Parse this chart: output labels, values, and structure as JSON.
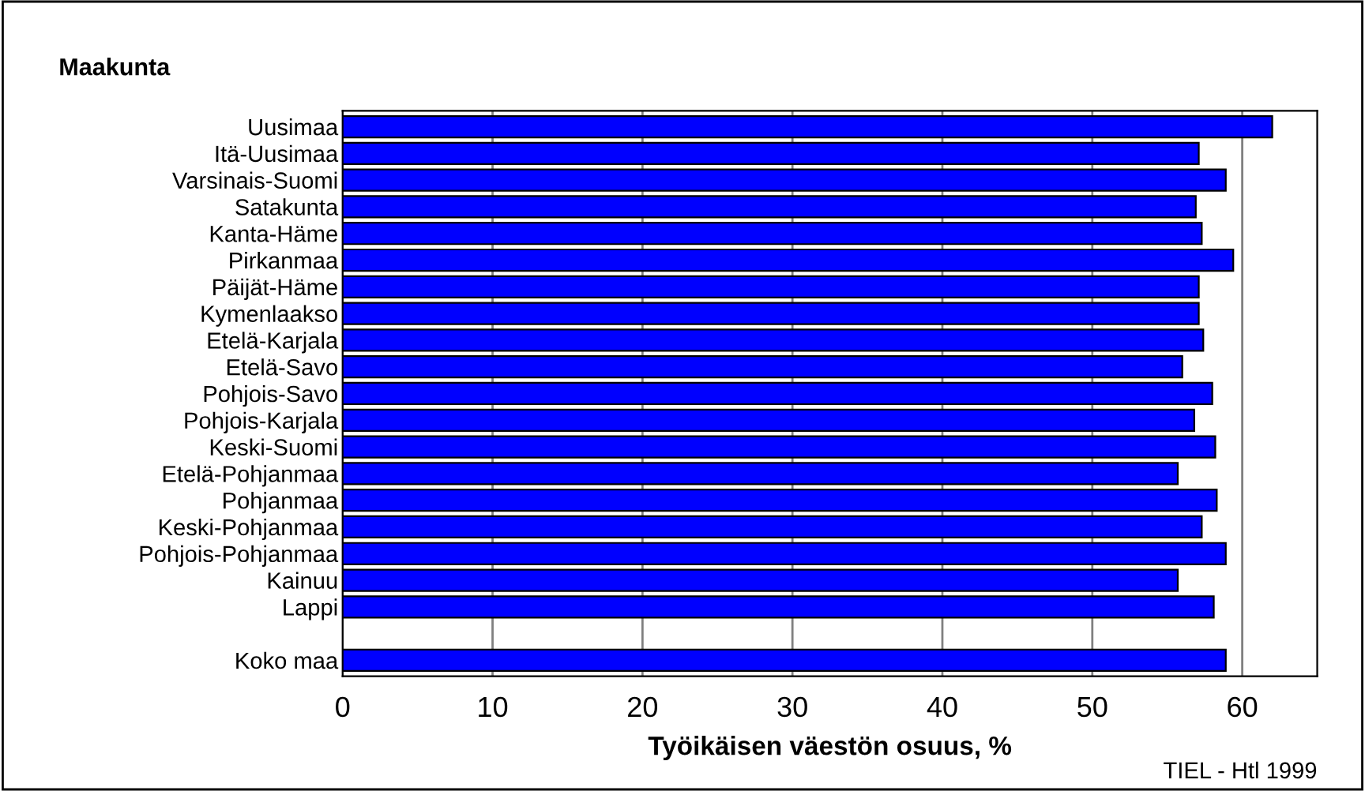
{
  "chart_data": {
    "type": "bar",
    "orientation": "horizontal",
    "title": "Maakunta",
    "xlabel": "Työikäisen väestön osuus, %",
    "categories": [
      "Uusimaa",
      "Itä-Uusimaa",
      "Varsinais-Suomi",
      "Satakunta",
      "Kanta-Häme",
      "Pirkanmaa",
      "Päijät-Häme",
      "Kymenlaakso",
      "Etelä-Karjala",
      "Etelä-Savo",
      "Pohjois-Savo",
      "Pohjois-Karjala",
      "Keski-Suomi",
      "Etelä-Pohjanmaa",
      "Pohjanmaa",
      "Keski-Pohjanmaa",
      "Pohjois-Pohjanmaa",
      "Kainuu",
      "Lappi",
      null,
      "Koko maa"
    ],
    "values": [
      62.0,
      57.1,
      58.9,
      56.9,
      57.3,
      59.4,
      57.1,
      57.1,
      57.4,
      56.0,
      58.0,
      56.8,
      58.2,
      55.7,
      58.3,
      57.3,
      58.9,
      55.7,
      58.1,
      null,
      58.9
    ],
    "color": "#0000ff",
    "xlim": [
      0,
      65
    ],
    "xticks": [
      0,
      10,
      20,
      30,
      40,
      50,
      60
    ],
    "grid": "x",
    "annotations": [
      "TIEL - Htl 1999"
    ]
  }
}
